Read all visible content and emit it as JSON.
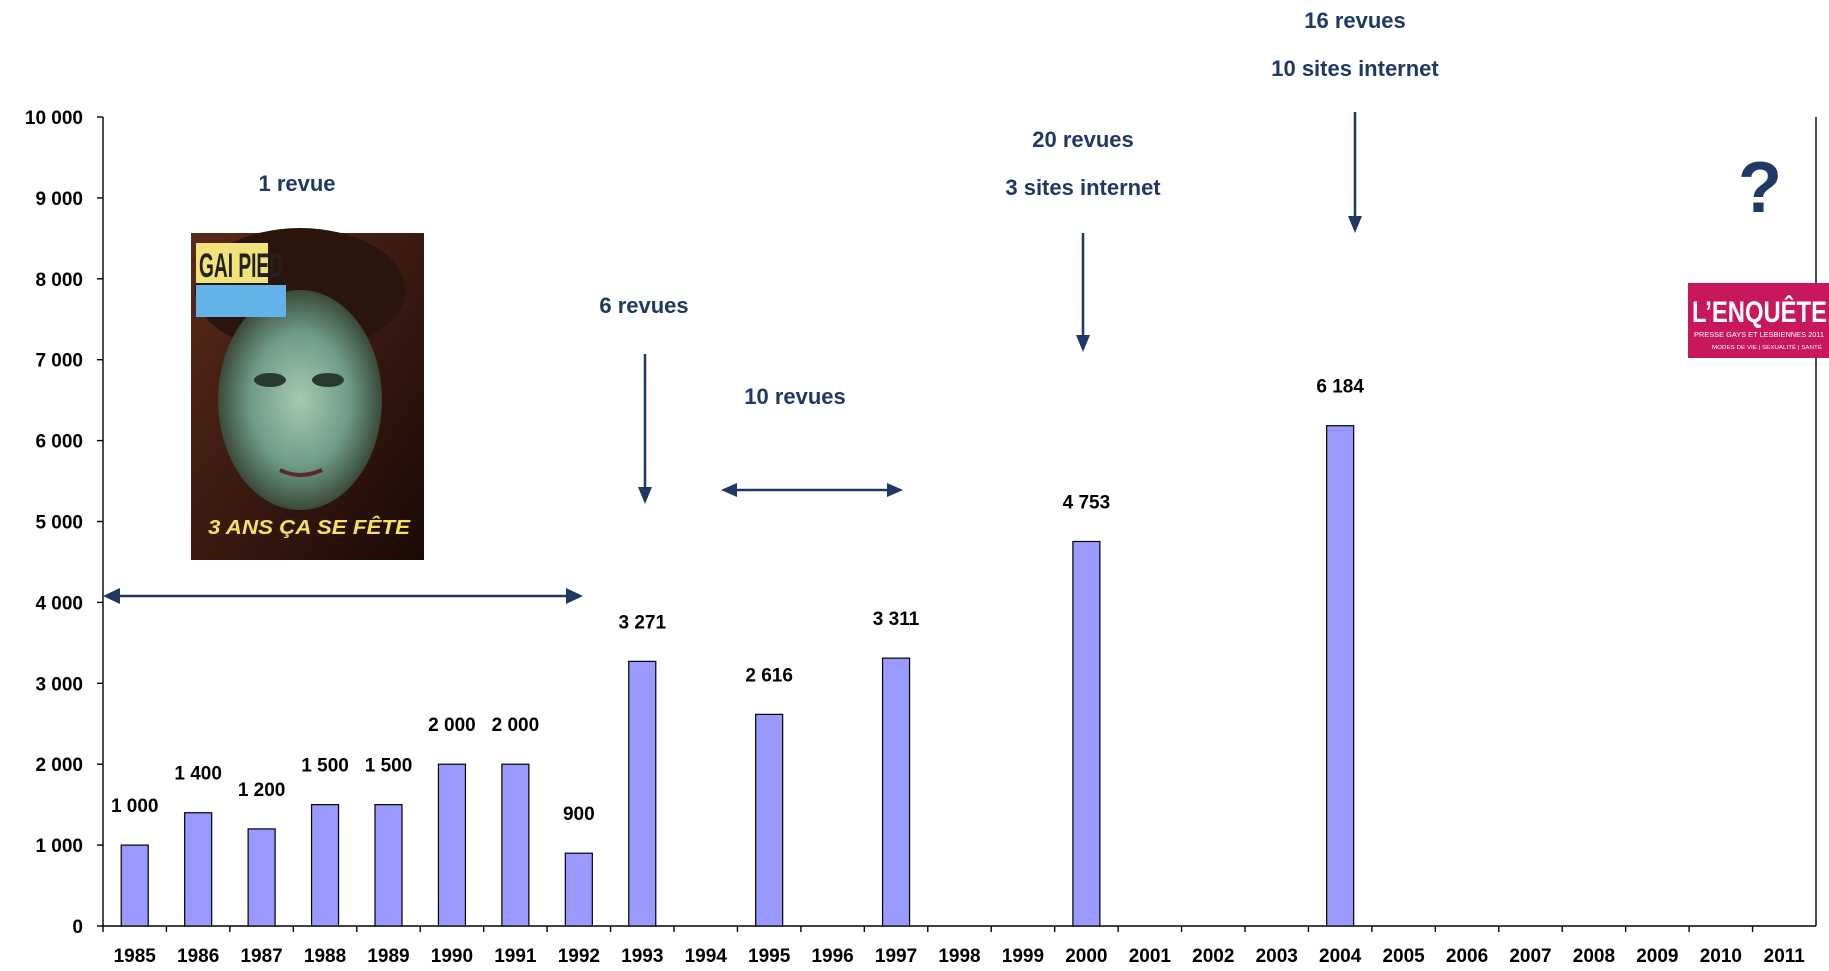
{
  "chart_data": {
    "type": "bar",
    "categories": [
      "1985",
      "1986",
      "1987",
      "1988",
      "1989",
      "1990",
      "1991",
      "1992",
      "1993",
      "1994",
      "1995",
      "1996",
      "1997",
      "1998",
      "1999",
      "2000",
      "2001",
      "2002",
      "2003",
      "2004",
      "2005",
      "2006",
      "2007",
      "2008",
      "2009",
      "2010",
      "2011"
    ],
    "values": [
      1000,
      1400,
      1200,
      1500,
      1500,
      2000,
      2000,
      900,
      3271,
      null,
      2616,
      null,
      3311,
      null,
      null,
      4753,
      null,
      null,
      null,
      6184,
      null,
      null,
      null,
      null,
      null,
      null,
      null
    ],
    "data_labels": [
      "1 000",
      "1 400",
      "1 200",
      "1 500",
      "1 500",
      "2 000",
      "2 000",
      "900",
      "3 271",
      "",
      "2 616",
      "",
      "3 311",
      "",
      "",
      "4 753",
      "",
      "",
      "",
      "6 184",
      "",
      "",
      "",
      "",
      "",
      "",
      ""
    ],
    "ylim": [
      0,
      10000
    ],
    "yticks": [
      0,
      1000,
      2000,
      3000,
      4000,
      5000,
      6000,
      7000,
      8000,
      9000,
      10000
    ],
    "ytick_labels": [
      "0",
      "1 000",
      "2 000",
      "3 000",
      "4 000",
      "5 000",
      "6 000",
      "7 000",
      "8 000",
      "9 000",
      "10 000"
    ],
    "title": "",
    "xlabel": "",
    "ylabel": "",
    "grid": false,
    "bar_color": "#9999ff"
  },
  "annotations": {
    "a1": "1 revue",
    "a6": "6 revues",
    "a10": "10 revues",
    "a20_1": "20 revues",
    "a20_2": "3 sites internet",
    "a16_1": "16 revues",
    "a16_2": "10 sites internet",
    "question": "?"
  },
  "magazine_cover": {
    "title": "GAI PIED",
    "caption": "3 ANS ÇA SE FÊTE"
  },
  "logo": {
    "title": "L’ENQUÊTE",
    "line1": "PRESSE GAYS ET LESBIENNES 2011",
    "line2": "MODES DE VIE | SEXUALITÉ | SANTÉ",
    "color": "#c8175d"
  },
  "colors": {
    "annotation": "#1f3864",
    "bar": "#9999ff"
  }
}
